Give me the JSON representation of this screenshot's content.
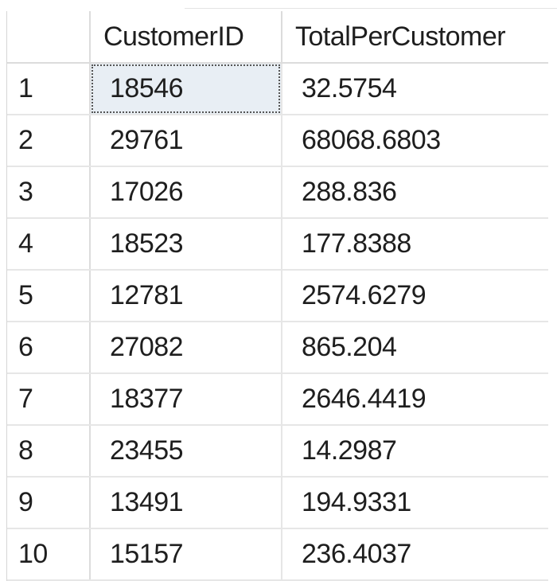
{
  "grid": {
    "columns": [
      "CustomerID",
      "TotalPerCustomer"
    ],
    "rows": [
      {
        "num": "1",
        "CustomerID": "18546",
        "TotalPerCustomer": "32.5754"
      },
      {
        "num": "2",
        "CustomerID": "29761",
        "TotalPerCustomer": "68068.6803"
      },
      {
        "num": "3",
        "CustomerID": "17026",
        "TotalPerCustomer": "288.836"
      },
      {
        "num": "4",
        "CustomerID": "18523",
        "TotalPerCustomer": "177.8388"
      },
      {
        "num": "5",
        "CustomerID": "12781",
        "TotalPerCustomer": "2574.6279"
      },
      {
        "num": "6",
        "CustomerID": "27082",
        "TotalPerCustomer": "865.204"
      },
      {
        "num": "7",
        "CustomerID": "18377",
        "TotalPerCustomer": "2646.4419"
      },
      {
        "num": "8",
        "CustomerID": "23455",
        "TotalPerCustomer": "14.2987"
      },
      {
        "num": "9",
        "CustomerID": "13491",
        "TotalPerCustomer": "194.9331"
      },
      {
        "num": "10",
        "CustomerID": "15157",
        "TotalPerCustomer": "236.4037"
      }
    ],
    "selected_cell": {
      "row": 0,
      "column": "CustomerID"
    }
  },
  "colors": {
    "selected_cell_bg": "#e8eef4",
    "grid_line": "#e6e6e6",
    "text": "#1e1e1e"
  }
}
